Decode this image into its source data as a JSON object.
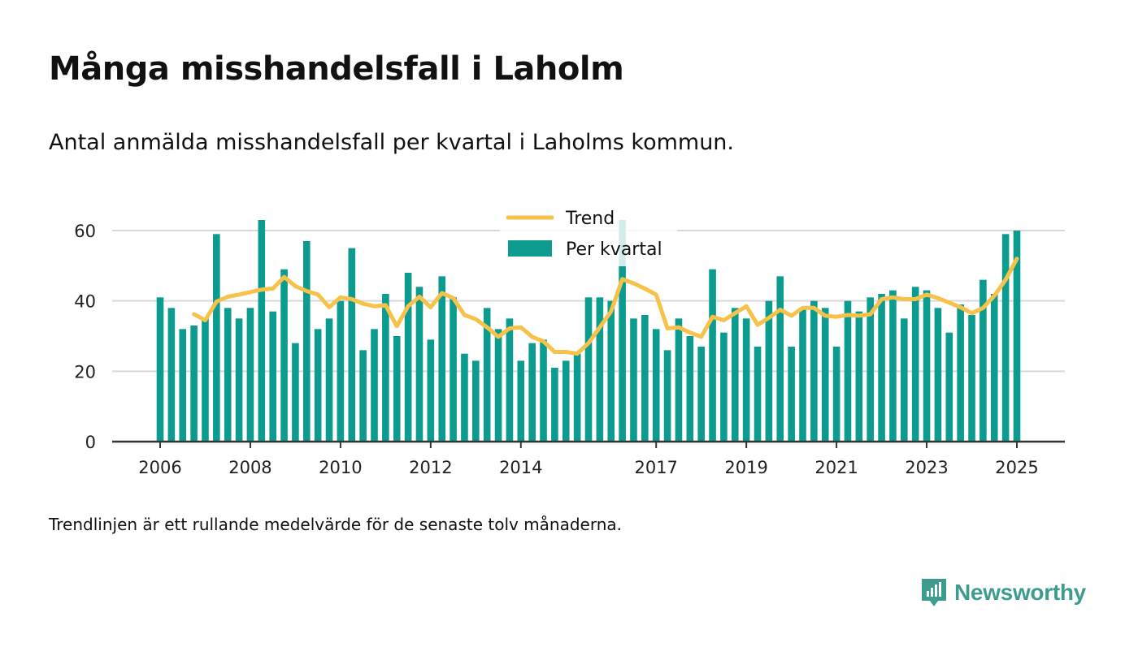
{
  "title": "Många misshandelsfall i Laholm",
  "subtitle": "Antal anmälda misshandelsfall per kvartal i Laholms kommun.",
  "footnote": "Trendlinjen är ett rullande medelvärde för de senaste tolv månaderna.",
  "brand": {
    "name": "Newsworthy",
    "icon": "newsworthy-logo-icon",
    "color": "#3d9c8f"
  },
  "chart_data": {
    "type": "bar",
    "x_ticks": [
      "2006",
      "2008",
      "2010",
      "2012",
      "2014",
      "2017",
      "2019",
      "2021",
      "2023",
      "2025"
    ],
    "ylim": [
      0,
      70
    ],
    "y_ticks": [
      0,
      20,
      40,
      60
    ],
    "grid": true,
    "legend_placement": "top-center",
    "series": [
      {
        "name": "Per kvartal",
        "kind": "bar",
        "color": "#0c9c8f",
        "values": [
          41,
          38,
          32,
          33,
          35,
          59,
          38,
          35,
          38,
          63,
          37,
          49,
          28,
          57,
          32,
          35,
          40,
          55,
          26,
          32,
          42,
          30,
          48,
          44,
          29,
          47,
          41,
          25,
          23,
          38,
          32,
          35,
          23,
          28,
          29,
          21,
          23,
          25,
          41,
          41,
          40,
          63,
          35,
          36,
          32,
          26,
          35,
          30,
          27,
          49,
          31,
          38,
          35,
          27,
          40,
          47,
          27,
          38,
          40,
          38,
          27,
          40,
          37,
          41,
          42,
          43,
          35,
          44,
          43,
          38,
          31,
          39,
          36,
          46,
          42,
          59,
          60
        ]
      },
      {
        "name": "Trend",
        "kind": "line",
        "color": "#f6c24a",
        "values": [
          null,
          null,
          null,
          36.2,
          34.5,
          39.8,
          41.2,
          41.8,
          42.5,
          43.2,
          43.5,
          46.8,
          44.2,
          42.8,
          41.8,
          38.2,
          41.0,
          40.5,
          39.2,
          38.5,
          38.8,
          32.8,
          38.5,
          41.2,
          38.2,
          42.2,
          40.8,
          36.0,
          34.8,
          32.5,
          29.8,
          32.2,
          32.5,
          29.8,
          28.5,
          25.5,
          25.5,
          25.0,
          28.0,
          32.5,
          37.0,
          46.2,
          45.0,
          43.5,
          41.8,
          32.2,
          32.5,
          31.0,
          29.8,
          35.5,
          34.5,
          36.5,
          38.5,
          33.2,
          35.2,
          37.5,
          35.8,
          38.0,
          38.0,
          35.8,
          35.5,
          36.0,
          35.8,
          36.2,
          40.5,
          41.0,
          40.5,
          40.5,
          41.8,
          40.8,
          39.5,
          38.2,
          36.5,
          38.0,
          41.5,
          46.0,
          52.0
        ]
      }
    ]
  }
}
